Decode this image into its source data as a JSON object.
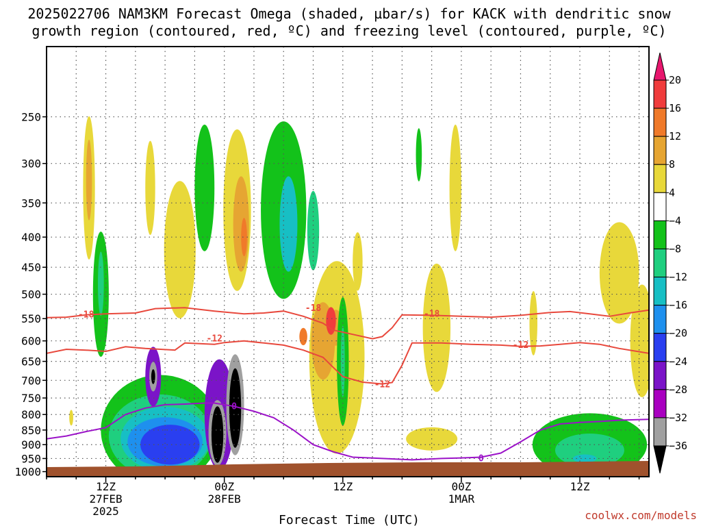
{
  "title_line1": "2025022706 NAM3KM Forecast Omega (shaded, µbar/s) for KACK with dendritic snow",
  "title_line2": "growth region (contoured, red, ºC) and freezing level (contoured, purple, ºC)",
  "xlabel": "Forecast Time (UTC)",
  "credit": "coolwx.com/models",
  "chart_data": {
    "type": "heatmap",
    "x_ticks": [
      {
        "lines": [
          "12Z",
          "27FEB",
          "2025"
        ],
        "hour": 12
      },
      {
        "lines": [
          "00Z",
          "28FEB"
        ],
        "hour": 24
      },
      {
        "lines": [
          "12Z"
        ],
        "hour": 36
      },
      {
        "lines": [
          "00Z",
          "1MAR"
        ],
        "hour": 48
      },
      {
        "lines": [
          "12Z"
        ],
        "hour": 60
      }
    ],
    "x_range_hours": [
      6,
      67
    ],
    "y_ticks": [
      250,
      300,
      350,
      400,
      450,
      500,
      550,
      600,
      650,
      700,
      750,
      800,
      850,
      900,
      950,
      1000
    ],
    "y_range_hPa": [
      190,
      1020
    ],
    "y_scale": "log-pressure",
    "grid": true,
    "colorbar": {
      "labels": [
        "20",
        "16",
        "12",
        "8",
        "4",
        "-4",
        "-8",
        "-12",
        "-16",
        "-20",
        "-24",
        "-28",
        "-32",
        "-36"
      ],
      "bins": [
        {
          "color": "#e8176e"
        },
        {
          "color": "#f03c3c"
        },
        {
          "color": "#f07a2a"
        },
        {
          "color": "#e6a532"
        },
        {
          "color": "#e8d83a"
        },
        {
          "color": "#ffffff"
        },
        {
          "color": "#13c21a"
        },
        {
          "color": "#1fcf7f"
        },
        {
          "color": "#17bfc4"
        },
        {
          "color": "#1e90ee"
        },
        {
          "color": "#2a3ff0"
        },
        {
          "color": "#7b14c8"
        },
        {
          "color": "#a900c0"
        },
        {
          "color": "#a0a0a0"
        },
        {
          "color": "#000000"
        }
      ]
    },
    "contours": [
      {
        "name": "-18",
        "color": "#e8483c",
        "points": [
          [
            6,
            548
          ],
          [
            8,
            547
          ],
          [
            10,
            542
          ],
          [
            12,
            540
          ],
          [
            15,
            538
          ],
          [
            17,
            529
          ],
          [
            20,
            527
          ],
          [
            23,
            534
          ],
          [
            26,
            540
          ],
          [
            28,
            538
          ],
          [
            30,
            534
          ],
          [
            32,
            545
          ],
          [
            34,
            560
          ],
          [
            35,
            575
          ],
          [
            37,
            585
          ],
          [
            39,
            595
          ],
          [
            40,
            590
          ],
          [
            41,
            570
          ],
          [
            42,
            542
          ],
          [
            45,
            543
          ],
          [
            48,
            545
          ],
          [
            51,
            547
          ],
          [
            54,
            543
          ],
          [
            57,
            537
          ],
          [
            59,
            535
          ],
          [
            61,
            540
          ],
          [
            63,
            545
          ],
          [
            65,
            538
          ],
          [
            67,
            532
          ]
        ],
        "label_at": [
          [
            10,
            542
          ],
          [
            33,
            528
          ],
          [
            45,
            540
          ]
        ]
      },
      {
        "name": "-12",
        "color": "#e8483c",
        "points": [
          [
            6,
            630
          ],
          [
            8,
            620
          ],
          [
            10,
            622
          ],
          [
            12,
            625
          ],
          [
            14,
            614
          ],
          [
            16,
            618
          ],
          [
            19,
            622
          ],
          [
            20,
            605
          ],
          [
            23,
            608
          ],
          [
            24,
            604
          ],
          [
            26,
            600
          ],
          [
            28,
            605
          ],
          [
            30,
            610
          ],
          [
            32,
            622
          ],
          [
            34,
            640
          ],
          [
            35,
            665
          ],
          [
            36,
            690
          ],
          [
            38,
            705
          ],
          [
            40,
            710
          ],
          [
            41,
            706
          ],
          [
            42,
            660
          ],
          [
            43,
            605
          ],
          [
            46,
            605
          ],
          [
            49,
            608
          ],
          [
            52,
            610
          ],
          [
            54,
            613
          ],
          [
            56,
            612
          ],
          [
            58,
            608
          ],
          [
            60,
            604
          ],
          [
            62,
            608
          ],
          [
            64,
            618
          ],
          [
            67,
            630
          ]
        ],
        "label_at": [
          [
            23,
            595
          ],
          [
            40,
            712
          ],
          [
            54,
            610
          ]
        ]
      }
    ],
    "freezing_level": {
      "name": "0",
      "color": "#9b12c8",
      "points": [
        [
          6,
          880
        ],
        [
          8,
          870
        ],
        [
          10,
          855
        ],
        [
          12,
          842
        ],
        [
          14,
          800
        ],
        [
          16,
          780
        ],
        [
          18,
          770
        ],
        [
          20,
          768
        ],
        [
          22,
          765
        ],
        [
          23,
          765
        ],
        [
          25,
          775
        ],
        [
          27,
          790
        ],
        [
          29,
          810
        ],
        [
          31,
          850
        ],
        [
          33,
          900
        ],
        [
          35,
          925
        ],
        [
          37,
          945
        ],
        [
          40,
          950
        ],
        [
          43,
          955
        ],
        [
          46,
          950
        ],
        [
          48,
          948
        ],
        [
          50,
          945
        ],
        [
          52,
          930
        ],
        [
          54,
          890
        ],
        [
          56,
          850
        ],
        [
          58,
          830
        ],
        [
          60,
          825
        ],
        [
          62,
          822
        ],
        [
          64,
          818
        ],
        [
          67,
          815
        ]
      ],
      "label_at": [
        [
          25,
          775
        ],
        [
          50,
          950
        ]
      ]
    }
  }
}
